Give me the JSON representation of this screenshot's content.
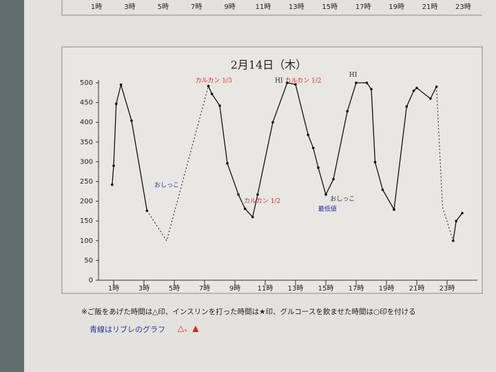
{
  "header_strip": {
    "labels": [
      "1時",
      "3時",
      "5時",
      "7時",
      "9時",
      "11時",
      "13時",
      "15時",
      "17時",
      "19時",
      "21時",
      "23時"
    ]
  },
  "chart_data": {
    "type": "line",
    "title": "2月14日（木）",
    "xlim": [
      0,
      25
    ],
    "ylim": [
      0,
      500
    ],
    "xticks": [
      {
        "value": 1,
        "label": "1時"
      },
      {
        "value": 3,
        "label": "3時"
      },
      {
        "value": 5,
        "label": "5時"
      },
      {
        "value": 7,
        "label": "7時"
      },
      {
        "value": 9,
        "label": "9時"
      },
      {
        "value": 11,
        "label": "11時"
      },
      {
        "value": 13,
        "label": "13時"
      },
      {
        "value": 15,
        "label": "15時"
      },
      {
        "value": 17,
        "label": "17時"
      },
      {
        "value": 19,
        "label": "19時"
      },
      {
        "value": 21,
        "label": "21時"
      },
      {
        "value": 23,
        "label": "23時"
      }
    ],
    "yticks": [
      0,
      50,
      100,
      150,
      200,
      250,
      300,
      350,
      400,
      450,
      500
    ],
    "grid": false,
    "series": [
      {
        "color": "#111111",
        "dash": false,
        "x": [
          0.9,
          1.0,
          1.17,
          1.48,
          2.18,
          3.2,
          null,
          7.25,
          7.48,
          8.0,
          8.5,
          9.23,
          9.67,
          10.17,
          10.5,
          11.5,
          12.45,
          13.0,
          13.83,
          14.17,
          14.5,
          15.0,
          15.5,
          16.42,
          17.0,
          17.7,
          18.0,
          18.25,
          18.75,
          19.5,
          null,
          19.5,
          20.33,
          20.8,
          21.0,
          21.9,
          22.3,
          null,
          23.4,
          23.6,
          24.0
        ],
        "values": [
          242,
          290,
          447,
          495,
          404,
          176,
          null,
          492,
          472,
          442,
          296,
          217,
          181,
          160,
          217,
          400,
          500,
          496,
          368,
          335,
          285,
          217,
          256,
          428,
          500,
          500,
          484,
          299,
          229,
          179,
          null,
          179,
          440,
          480,
          487,
          460,
          490,
          null,
          100,
          150,
          170
        ]
      },
      {
        "color": "#111111",
        "dash": true,
        "x": [
          3.2,
          4.5,
          7.25,
          null,
          22.3,
          22.7,
          23.4
        ],
        "values": [
          176,
          100,
          492,
          null,
          490,
          185,
          100
        ]
      }
    ],
    "annotations": [
      {
        "text": "HI",
        "x": 11.9,
        "y": 505,
        "color": "#222222"
      },
      {
        "text": "HI",
        "x": 16.8,
        "y": 520,
        "color": "#222222"
      },
      {
        "text": "最低値",
        "x": 15.1,
        "y": 180,
        "color": "#2233aa"
      },
      {
        "text": "おしっこ",
        "x": 4.5,
        "y": 240,
        "color": "#2233aa"
      },
      {
        "text": "おしっこ",
        "x": 16.1,
        "y": 205,
        "color": "#333333"
      },
      {
        "text": "カルカン 1/2",
        "x": 10.8,
        "y": 200,
        "color": "#d42a1a"
      },
      {
        "text": "カルカン 1/3",
        "x": 7.6,
        "y": 505,
        "color": "#d42a1a"
      },
      {
        "text": "カルカン 1/2",
        "x": 13.5,
        "y": 505,
        "color": "#d42a1a"
      }
    ],
    "footnote": "※ご飯をあげた時間は△印、インスリンを打った時間は★印、グルコースを飲ませた時間は○印を付ける",
    "handnote": "青線はリブレのグラフ",
    "handnote_marks": "△、▲"
  }
}
